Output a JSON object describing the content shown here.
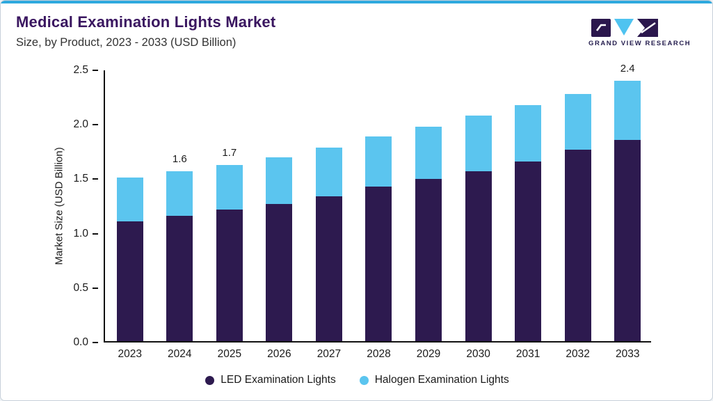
{
  "header": {
    "title": "Medical Examination Lights Market",
    "subtitle": "Size, by Product, 2023 - 2033 (USD Billion)",
    "brand": "GRAND VIEW RESEARCH"
  },
  "colors": {
    "led": "#2d1a4f",
    "halogen": "#5bc5ef",
    "title": "#3a1660",
    "top_strip": "#2ea9de",
    "axis": "#111111"
  },
  "chart_data": {
    "type": "bar",
    "stacked": true,
    "title": "Medical Examination Lights Market Size, by Product, 2023 - 2033 (USD Billion)",
    "categories": [
      "2023",
      "2024",
      "2025",
      "2026",
      "2027",
      "2028",
      "2029",
      "2030",
      "2031",
      "2032",
      "2033"
    ],
    "series": [
      {
        "name": "LED Examination Lights",
        "color": "#2d1a4f",
        "values": [
          1.1,
          1.15,
          1.21,
          1.26,
          1.33,
          1.42,
          1.49,
          1.56,
          1.65,
          1.76,
          1.85
        ]
      },
      {
        "name": "Halogen Examination Lights",
        "color": "#5bc5ef",
        "values": [
          0.4,
          0.41,
          0.41,
          0.43,
          0.45,
          0.46,
          0.48,
          0.51,
          0.52,
          0.51,
          0.54
        ]
      }
    ],
    "annotations": [
      {
        "category": "2024",
        "text": "1.6"
      },
      {
        "category": "2025",
        "text": "1.7"
      },
      {
        "category": "2033",
        "text": "2.4"
      }
    ],
    "xlabel": "",
    "ylabel": "Market Size (USD Billion)",
    "yticks": [
      "0.0",
      "0.5",
      "1.0",
      "1.5",
      "2.0",
      "2.5"
    ],
    "ylim": [
      0,
      2.5
    ],
    "grid": false,
    "legend_position": "bottom"
  }
}
